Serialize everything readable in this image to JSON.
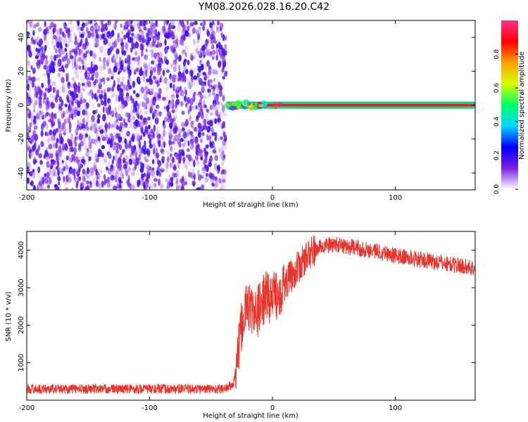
{
  "title": "YM08.2026.028.16.20.C42",
  "chart_data": [
    {
      "type": "heatmap",
      "xlabel": "Height of straight line (km)",
      "ylabel": "Frequency (Hz)",
      "xlim": [
        -200,
        165
      ],
      "ylim": [
        -50,
        50
      ],
      "xticks": [
        -200,
        -100,
        0,
        100
      ],
      "xtick_labels": [
        "-200",
        "-100",
        "0",
        "100"
      ],
      "yticks": [
        -40,
        -20,
        0,
        20,
        40
      ],
      "ytick_labels": [
        "-40",
        "-20",
        "0",
        "20",
        "40"
      ],
      "colorbar": {
        "label": "Normalized spectral amplitude",
        "range": [
          0,
          1
        ],
        "ticks": [
          0,
          0.2,
          0.4,
          0.6,
          0.8
        ],
        "tick_labels": [
          "0.0",
          "0.2",
          "0.4",
          "0.6",
          "0.8"
        ],
        "colormap": [
          "#ffffff",
          "#7a1fe0",
          "#0000ff",
          "#00d8ff",
          "#00ff60",
          "#d8ff00",
          "#ffa000",
          "#ff0000",
          "#ff3090"
        ]
      },
      "regions": [
        {
          "x_range": [
            -200,
            -38
          ],
          "description_value": "scattered noise",
          "amplitude": [
            0.0,
            0.2
          ]
        },
        {
          "x_range": [
            -38,
            165
          ],
          "freq_hz": 0,
          "amplitude": [
            0.8,
            1.0
          ]
        }
      ],
      "grid": false
    },
    {
      "type": "line",
      "xlabel": "Height of straight line (km)",
      "ylabel": "SNR (10 * v/v)",
      "xlim": [
        -200,
        165
      ],
      "ylim": [
        0,
        4500
      ],
      "xticks": [
        -200,
        -100,
        0,
        100
      ],
      "xtick_labels": [
        "-200",
        "-100",
        "0",
        "100"
      ],
      "yticks": [
        1000,
        2000,
        3000,
        4000
      ],
      "ytick_labels": [
        "1000",
        "2000",
        "3000",
        "4000"
      ],
      "series": [
        {
          "color": "#e8322a",
          "x": [
            -200,
            -150,
            -100,
            -60,
            -40,
            -32,
            -28,
            -25,
            -22,
            -20,
            -15,
            -10,
            -5,
            0,
            5,
            10,
            20,
            30,
            40,
            50,
            60,
            70,
            80,
            90,
            100,
            110,
            120,
            130,
            140,
            150,
            160,
            165
          ],
          "y": [
            300,
            300,
            300,
            300,
            300,
            400,
            1200,
            2000,
            2400,
            2600,
            2200,
            2500,
            2800,
            2700,
            2900,
            3100,
            3500,
            3900,
            4100,
            4150,
            4100,
            4050,
            4000,
            3950,
            3850,
            3800,
            3750,
            3700,
            3650,
            3600,
            3550,
            3500
          ]
        }
      ],
      "grid": false
    }
  ]
}
